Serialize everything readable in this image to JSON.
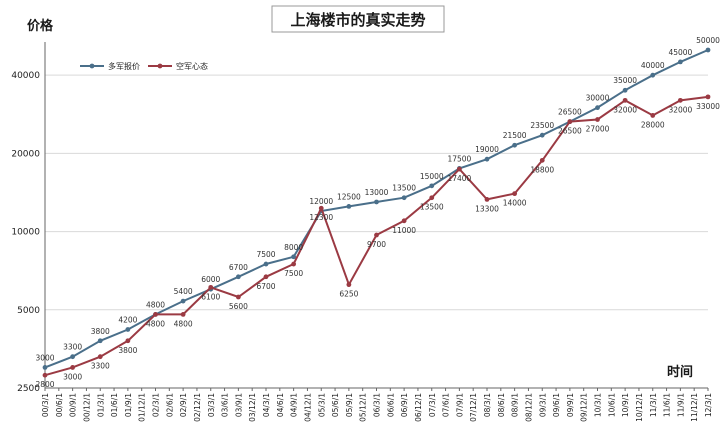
{
  "chart_data": {
    "type": "line",
    "title": "上海楼市的真实走势",
    "ylabel": "价格",
    "xlabel": "时间",
    "y_scale": "log",
    "ylim": [
      2500,
      50000
    ],
    "yticks": [
      2500,
      5000,
      10000,
      20000,
      40000
    ],
    "grid": true,
    "legend_position": "top-left",
    "categories": [
      "00/3/1",
      "00/6/1",
      "00/9/1",
      "00/12/1",
      "01/3/1",
      "01/6/1",
      "01/9/1",
      "01/12/1",
      "02/3/1",
      "02/6/1",
      "02/9/1",
      "02/12/1",
      "03/3/1",
      "03/6/1",
      "03/9/1",
      "03/12/1",
      "04/3/1",
      "04/6/1",
      "04/9/1",
      "04/12/1",
      "05/3/1",
      "05/6/1",
      "05/9/1",
      "05/12/1",
      "06/3/1",
      "06/6/1",
      "06/9/1",
      "06/12/1",
      "07/3/1",
      "07/6/1",
      "07/9/1",
      "07/12/1",
      "08/3/1",
      "08/6/1",
      "08/9/1",
      "08/12/1",
      "09/3/1",
      "09/6/1",
      "09/9/1",
      "09/12/1",
      "10/3/1",
      "10/6/1",
      "10/9/1",
      "10/12/1",
      "11/3/1",
      "11/6/1",
      "11/9/1",
      "11/12/1",
      "12/3/1"
    ],
    "series": [
      {
        "name": "多军报价",
        "color": "#4a6f8a",
        "points": [
          {
            "x": "00/3/1",
            "y": 3000
          },
          {
            "x": "00/9/1",
            "y": 3300
          },
          {
            "x": "01/3/1",
            "y": 3800
          },
          {
            "x": "01/9/1",
            "y": 4200
          },
          {
            "x": "02/3/1",
            "y": 4800
          },
          {
            "x": "02/9/1",
            "y": 5400
          },
          {
            "x": "03/3/1",
            "y": 6000
          },
          {
            "x": "03/9/1",
            "y": 6700
          },
          {
            "x": "04/3/1",
            "y": 7500
          },
          {
            "x": "04/9/1",
            "y": 8000
          },
          {
            "x": "05/3/1",
            "y": 12000
          },
          {
            "x": "05/9/1",
            "y": 12500
          },
          {
            "x": "06/3/1",
            "y": 13000
          },
          {
            "x": "06/9/1",
            "y": 13500
          },
          {
            "x": "07/3/1",
            "y": 15000
          },
          {
            "x": "07/9/1",
            "y": 17500
          },
          {
            "x": "08/3/1",
            "y": 19000
          },
          {
            "x": "08/9/1",
            "y": 21500
          },
          {
            "x": "09/3/1",
            "y": 23500
          },
          {
            "x": "09/9/1",
            "y": 26500
          },
          {
            "x": "10/3/1",
            "y": 30000
          },
          {
            "x": "10/9/1",
            "y": 35000
          },
          {
            "x": "11/3/1",
            "y": 40000
          },
          {
            "x": "11/9/1",
            "y": 45000
          },
          {
            "x": "12/3/1",
            "y": 50000
          }
        ]
      },
      {
        "name": "空军心态",
        "color": "#9b3a43",
        "points": [
          {
            "x": "00/3/1",
            "y": 2800
          },
          {
            "x": "00/9/1",
            "y": 3000
          },
          {
            "x": "01/3/1",
            "y": 3300
          },
          {
            "x": "01/9/1",
            "y": 3800
          },
          {
            "x": "02/3/1",
            "y": 4800
          },
          {
            "x": "02/9/1",
            "y": 4800
          },
          {
            "x": "03/3/1",
            "y": 6100
          },
          {
            "x": "03/9/1",
            "y": 5600
          },
          {
            "x": "04/3/1",
            "y": 6700
          },
          {
            "x": "04/9/1",
            "y": 7500
          },
          {
            "x": "05/3/1",
            "y": 12300
          },
          {
            "x": "05/9/1",
            "y": 6250
          },
          {
            "x": "06/3/1",
            "y": 9700
          },
          {
            "x": "06/9/1",
            "y": 11000
          },
          {
            "x": "07/3/1",
            "y": 13500
          },
          {
            "x": "07/9/1",
            "y": 17400
          },
          {
            "x": "08/3/1",
            "y": 13300
          },
          {
            "x": "08/9/1",
            "y": 14000
          },
          {
            "x": "09/3/1",
            "y": 18800
          },
          {
            "x": "09/9/1",
            "y": 26500
          },
          {
            "x": "10/3/1",
            "y": 27000
          },
          {
            "x": "10/9/1",
            "y": 32000
          },
          {
            "x": "11/3/1",
            "y": 28000
          },
          {
            "x": "11/9/1",
            "y": 32000
          },
          {
            "x": "12/3/1",
            "y": 33000
          }
        ]
      }
    ]
  }
}
